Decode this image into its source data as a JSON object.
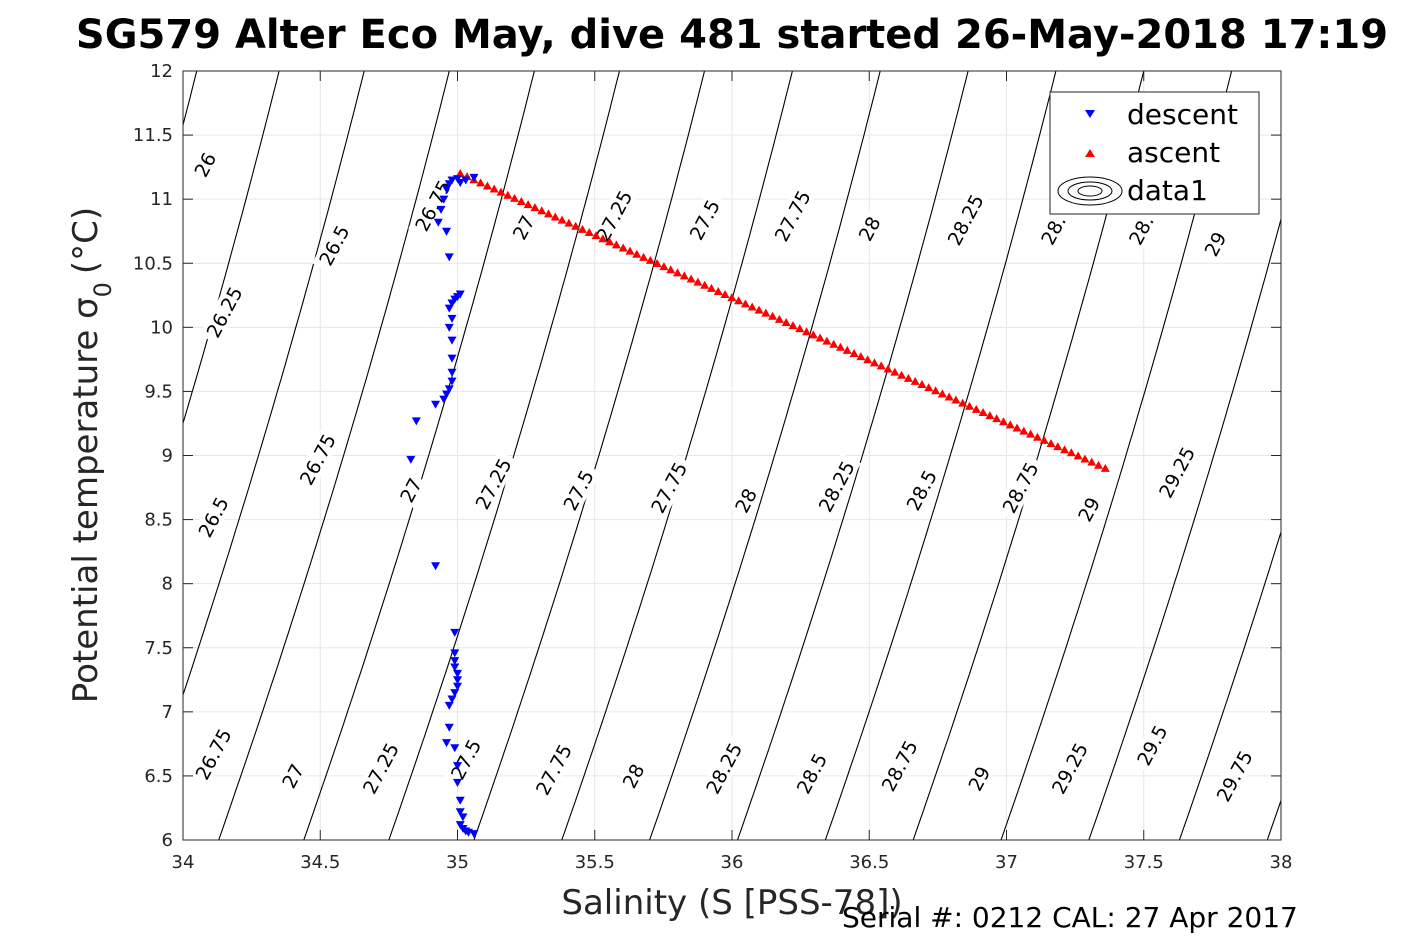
{
  "chart_data": {
    "type": "scatter",
    "title": "SG579 Alter Eco May, dive 481 started 26-May-2018 17:19",
    "xlabel": "Salinity (S [PSS-78])",
    "ylabel": "Potential temperature σ",
    "ylabel_subscript": "0",
    "ylabel_unit": "(°C)",
    "xlim": [
      34,
      38
    ],
    "ylim": [
      6,
      12
    ],
    "xticks": [
      "34",
      "34.5",
      "35",
      "35.5",
      "36",
      "36.5",
      "37",
      "37.5",
      "38"
    ],
    "yticks": [
      "6",
      "6.5",
      "7",
      "7.5",
      "8",
      "8.5",
      "9",
      "9.5",
      "10",
      "10.5",
      "11",
      "11.5",
      "12"
    ],
    "grid": true,
    "legend_position": "top-right",
    "legend": [
      "descent",
      "ascent",
      "data1"
    ],
    "colors": {
      "descent": "#0000ff",
      "ascent": "#ff0000",
      "contour": "#000000",
      "grid": "#e6e6e6",
      "axis": "#262626"
    },
    "series": [
      {
        "name": "descent",
        "marker": "triangle-down",
        "points": [
          [
            35.06,
            6.05
          ],
          [
            35.04,
            6.06
          ],
          [
            35.03,
            6.07
          ],
          [
            35.02,
            6.09
          ],
          [
            35.01,
            6.12
          ],
          [
            35.02,
            6.18
          ],
          [
            35.01,
            6.22
          ],
          [
            35.01,
            6.31
          ],
          [
            35.0,
            6.45
          ],
          [
            35.0,
            6.58
          ],
          [
            34.99,
            6.72
          ],
          [
            34.96,
            6.76
          ],
          [
            34.97,
            6.88
          ],
          [
            34.97,
            7.05
          ],
          [
            34.98,
            7.1
          ],
          [
            34.99,
            7.15
          ],
          [
            35.0,
            7.2
          ],
          [
            35.0,
            7.25
          ],
          [
            35.0,
            7.3
          ],
          [
            34.99,
            7.35
          ],
          [
            34.99,
            7.4
          ],
          [
            34.99,
            7.46
          ],
          [
            34.99,
            7.62
          ],
          [
            34.92,
            8.14
          ],
          [
            34.83,
            8.97
          ],
          [
            34.85,
            9.27
          ],
          [
            34.92,
            9.4
          ],
          [
            34.95,
            9.44
          ],
          [
            34.96,
            9.48
          ],
          [
            34.97,
            9.52
          ],
          [
            34.98,
            9.58
          ],
          [
            34.98,
            9.65
          ],
          [
            34.98,
            9.76
          ],
          [
            34.98,
            9.9
          ],
          [
            34.97,
            10.0
          ],
          [
            34.98,
            10.07
          ],
          [
            34.97,
            10.15
          ],
          [
            34.98,
            10.19
          ],
          [
            34.99,
            10.22
          ],
          [
            35.0,
            10.24
          ],
          [
            35.01,
            10.26
          ],
          [
            34.97,
            10.55
          ],
          [
            34.96,
            10.75
          ],
          [
            34.93,
            10.82
          ],
          [
            34.94,
            10.92
          ],
          [
            34.95,
            11.0
          ],
          [
            34.96,
            11.08
          ],
          [
            34.97,
            11.12
          ],
          [
            34.98,
            11.15
          ],
          [
            35.0,
            11.16
          ],
          [
            35.01,
            11.13
          ],
          [
            35.03,
            11.15
          ],
          [
            35.06,
            11.17
          ]
        ]
      },
      {
        "name": "ascent",
        "marker": "triangle-up",
        "start": [
          35.01,
          11.2
        ],
        "end": [
          37.36,
          8.9
        ],
        "count": 96
      }
    ],
    "isopycnals": {
      "name": "data1",
      "levels": [
        26,
        26.25,
        26.5,
        26.75,
        27,
        27.25,
        27.5,
        27.75,
        28,
        28.25,
        28.5,
        28.75,
        29,
        29.25,
        29.5,
        29.75
      ],
      "s_at_theta_12": [
        34.05,
        34.35,
        34.66,
        34.97,
        35.28,
        35.59,
        35.9,
        36.22,
        36.54,
        36.86,
        37.18,
        37.5,
        37.82,
        38.14,
        38.47,
        38.79
      ],
      "ds_dtheta": 0.14,
      "labels": [
        {
          "text": "26",
          "s": 34.08,
          "t": 11.27
        },
        {
          "text": "26.25",
          "s": 34.15,
          "t": 10.12
        },
        {
          "text": "26.5",
          "s": 34.11,
          "t": 8.52
        },
        {
          "text": "26.75",
          "s": 34.11,
          "t": 6.67
        },
        {
          "text": "26.5",
          "s": 34.55,
          "t": 10.64
        },
        {
          "text": "26.75",
          "s": 34.49,
          "t": 8.97
        },
        {
          "text": "27",
          "s": 34.4,
          "t": 6.5
        },
        {
          "text": "26.75",
          "s": 34.91,
          "t": 10.95
        },
        {
          "text": "27",
          "s": 34.83,
          "t": 8.73
        },
        {
          "text": "27.25",
          "s": 34.72,
          "t": 6.56
        },
        {
          "text": "27",
          "s": 35.24,
          "t": 10.78
        },
        {
          "text": "27.25",
          "s": 35.13,
          "t": 8.78
        },
        {
          "text": "27.5",
          "s": 35.03,
          "t": 6.63
        },
        {
          "text": "27.25",
          "s": 35.57,
          "t": 10.87
        },
        {
          "text": "27.5",
          "s": 35.44,
          "t": 8.73
        },
        {
          "text": "27.75",
          "s": 35.35,
          "t": 6.55
        },
        {
          "text": "27.5",
          "s": 35.9,
          "t": 10.84
        },
        {
          "text": "27.75",
          "s": 35.77,
          "t": 8.75
        },
        {
          "text": "28",
          "s": 35.64,
          "t": 6.5
        },
        {
          "text": "27.75",
          "s": 36.22,
          "t": 10.87
        },
        {
          "text": "28",
          "s": 36.05,
          "t": 8.65
        },
        {
          "text": "28.25",
          "s": 35.97,
          "t": 6.56
        },
        {
          "text": "28",
          "s": 36.5,
          "t": 10.77
        },
        {
          "text": "28.25",
          "s": 36.38,
          "t": 8.76
        },
        {
          "text": "28.5",
          "s": 36.29,
          "t": 6.52
        },
        {
          "text": "28.25",
          "s": 36.85,
          "t": 10.84
        },
        {
          "text": "28.5",
          "s": 36.69,
          "t": 8.73
        },
        {
          "text": "28.75",
          "s": 36.61,
          "t": 6.58
        },
        {
          "text": "28.",
          "s": 37.17,
          "t": 10.76
        },
        {
          "text": "28.75",
          "s": 37.05,
          "t": 8.75
        },
        {
          "text": "29",
          "s": 36.9,
          "t": 6.48
        },
        {
          "text": "28.",
          "s": 37.49,
          "t": 10.76
        },
        {
          "text": "29",
          "s": 37.3,
          "t": 8.58
        },
        {
          "text": "29.25",
          "s": 37.23,
          "t": 6.56
        },
        {
          "text": "29",
          "s": 37.76,
          "t": 10.65
        },
        {
          "text": "29.25",
          "s": 37.62,
          "t": 8.87
        },
        {
          "text": "29.5",
          "s": 37.53,
          "t": 6.74
        },
        {
          "text": "29.75",
          "s": 37.83,
          "t": 6.5
        }
      ]
    }
  },
  "footer": {
    "serial_text": "Serial #: 0212  CAL: 27 Apr 2017"
  }
}
